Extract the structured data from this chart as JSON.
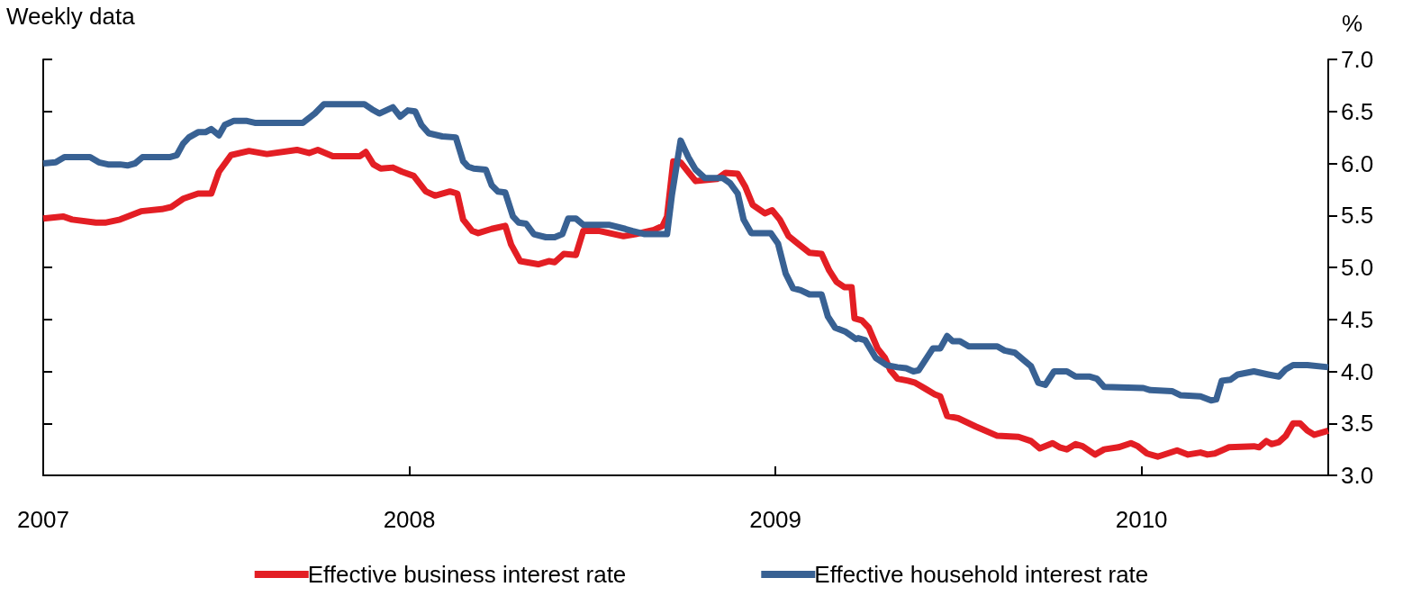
{
  "chart_data": {
    "type": "line",
    "subtitle": "Weekly data",
    "ylabel": "%",
    "xlim": [
      2007,
      2010.51
    ],
    "xticks": [
      2007,
      2008,
      2009,
      2010
    ],
    "ylim": [
      3,
      7
    ],
    "yticks": [
      {
        "value": 3,
        "label": "3.0"
      },
      {
        "value": 3.5,
        "label": "3.5"
      },
      {
        "value": 4,
        "label": "4.0"
      },
      {
        "value": 4.5,
        "label": "4.5"
      },
      {
        "value": 5,
        "label": "5.0"
      },
      {
        "value": 5.5,
        "label": "5.5"
      },
      {
        "value": 6,
        "label": "6.0"
      },
      {
        "value": 6.5,
        "label": "6.5"
      },
      {
        "value": 7,
        "label": "7.0"
      }
    ],
    "grid": false,
    "legend": "bottom",
    "line_style": "solid",
    "series": [
      {
        "name": "Effective business interest rate",
        "color": "#e31e24",
        "x": [
          2007.0,
          2007.054,
          2007.079,
          2007.144,
          2007.169,
          2007.21,
          2007.267,
          2007.324,
          2007.349,
          2007.382,
          2007.423,
          2007.459,
          2007.48,
          2007.513,
          2007.562,
          2007.611,
          2007.693,
          2007.726,
          2007.75,
          2007.791,
          2007.865,
          2007.881,
          2007.902,
          2007.922,
          2007.955,
          2007.98,
          2008.012,
          2008.045,
          2008.07,
          2008.111,
          2008.131,
          2008.147,
          2008.172,
          2008.188,
          2008.225,
          2008.262,
          2008.278,
          2008.303,
          2008.352,
          2008.381,
          2008.397,
          2008.422,
          2008.455,
          2008.475,
          2008.52,
          2008.585,
          2008.618,
          2008.668,
          2008.692,
          2008.704,
          2008.721,
          2008.741,
          2008.782,
          2008.84,
          2008.864,
          2008.897,
          2008.917,
          2008.938,
          2008.971,
          2008.991,
          2009.012,
          2009.036,
          2009.061,
          2009.093,
          2009.126,
          2009.147,
          2009.167,
          2009.188,
          2009.208,
          2009.216,
          2009.236,
          2009.255,
          2009.279,
          2009.299,
          2009.314,
          2009.333,
          2009.362,
          2009.382,
          2009.411,
          2009.435,
          2009.45,
          2009.469,
          2009.499,
          2009.547,
          2009.567,
          2009.606,
          2009.664,
          2009.698,
          2009.722,
          2009.757,
          2009.776,
          2009.796,
          2009.82,
          2009.839,
          2009.873,
          2009.898,
          2009.937,
          2009.971,
          2009.99,
          2010.015,
          2010.044,
          2010.097,
          2010.127,
          2010.161,
          2010.18,
          2010.2,
          2010.239,
          2010.307,
          2010.321,
          2010.341,
          2010.355,
          2010.375,
          2010.394,
          2010.414,
          2010.433,
          2010.453,
          2010.472,
          2010.51
        ],
        "values": [
          5.47,
          5.49,
          5.46,
          5.43,
          5.43,
          5.46,
          5.54,
          5.56,
          5.58,
          5.66,
          5.71,
          5.71,
          5.92,
          6.08,
          6.12,
          6.09,
          6.13,
          6.1,
          6.13,
          6.07,
          6.07,
          6.11,
          5.99,
          5.95,
          5.96,
          5.92,
          5.88,
          5.73,
          5.69,
          5.73,
          5.71,
          5.46,
          5.35,
          5.33,
          5.37,
          5.4,
          5.22,
          5.06,
          5.03,
          5.06,
          5.05,
          5.13,
          5.12,
          5.35,
          5.35,
          5.3,
          5.32,
          5.36,
          5.4,
          5.49,
          6.02,
          6.01,
          5.83,
          5.85,
          5.91,
          5.9,
          5.78,
          5.6,
          5.52,
          5.55,
          5.46,
          5.3,
          5.23,
          5.14,
          5.13,
          4.97,
          4.86,
          4.81,
          4.81,
          4.51,
          4.49,
          4.42,
          4.22,
          4.13,
          4.01,
          3.93,
          3.91,
          3.89,
          3.83,
          3.78,
          3.76,
          3.57,
          3.55,
          3.47,
          3.44,
          3.38,
          3.37,
          3.33,
          3.26,
          3.31,
          3.27,
          3.25,
          3.3,
          3.28,
          3.2,
          3.25,
          3.27,
          3.31,
          3.28,
          3.21,
          3.18,
          3.24,
          3.2,
          3.22,
          3.2,
          3.21,
          3.27,
          3.28,
          3.27,
          3.33,
          3.3,
          3.32,
          3.38,
          3.5,
          3.5,
          3.43,
          3.39,
          3.43
        ]
      },
      {
        "name": "Effective household interest rate",
        "color": "#386193",
        "x": [
          2007.0,
          2007.034,
          2007.058,
          2007.128,
          2007.152,
          2007.177,
          2007.21,
          2007.23,
          2007.251,
          2007.271,
          2007.345,
          2007.365,
          2007.382,
          2007.398,
          2007.423,
          2007.443,
          2007.459,
          2007.48,
          2007.496,
          2007.521,
          2007.554,
          2007.578,
          2007.709,
          2007.742,
          2007.767,
          2007.877,
          2007.898,
          2007.918,
          2007.955,
          2007.975,
          2007.996,
          2008.016,
          2008.033,
          2008.053,
          2008.09,
          2008.127,
          2008.147,
          2008.16,
          2008.176,
          2008.209,
          2008.225,
          2008.242,
          2008.262,
          2008.283,
          2008.299,
          2008.319,
          2008.34,
          2008.373,
          2008.397,
          2008.418,
          2008.434,
          2008.455,
          2008.475,
          2008.545,
          2008.59,
          2008.61,
          2008.643,
          2008.704,
          2008.717,
          2008.741,
          2008.762,
          2008.782,
          2008.807,
          2008.856,
          2008.876,
          2008.897,
          2008.913,
          2008.934,
          2008.987,
          2009.007,
          2009.028,
          2009.048,
          2009.069,
          2009.093,
          2009.126,
          2009.143,
          2009.163,
          2009.192,
          2009.22,
          2009.226,
          2009.245,
          2009.274,
          2009.304,
          2009.333,
          2009.357,
          2009.377,
          2009.391,
          2009.43,
          2009.45,
          2009.469,
          2009.484,
          2009.504,
          2009.528,
          2009.606,
          2009.626,
          2009.654,
          2009.698,
          2009.718,
          2009.737,
          2009.761,
          2009.796,
          2009.82,
          2009.859,
          2009.878,
          2009.898,
          2010.005,
          2010.024,
          2010.083,
          2010.107,
          2010.161,
          2010.19,
          2010.204,
          2010.219,
          2010.243,
          2010.263,
          2010.307,
          2010.346,
          2010.375,
          2010.394,
          2010.414,
          2010.453,
          2010.51
        ],
        "values": [
          6.0,
          6.01,
          6.06,
          6.06,
          6.01,
          5.99,
          5.99,
          5.98,
          6.0,
          6.06,
          6.06,
          6.08,
          6.19,
          6.25,
          6.3,
          6.3,
          6.33,
          6.27,
          6.37,
          6.41,
          6.41,
          6.39,
          6.39,
          6.48,
          6.57,
          6.57,
          6.52,
          6.48,
          6.54,
          6.45,
          6.51,
          6.5,
          6.37,
          6.29,
          6.26,
          6.25,
          6.02,
          5.97,
          5.95,
          5.94,
          5.79,
          5.73,
          5.72,
          5.49,
          5.43,
          5.42,
          5.32,
          5.29,
          5.29,
          5.32,
          5.47,
          5.47,
          5.41,
          5.41,
          5.37,
          5.35,
          5.32,
          5.32,
          5.69,
          6.22,
          6.06,
          5.94,
          5.86,
          5.86,
          5.81,
          5.71,
          5.46,
          5.33,
          5.33,
          5.23,
          4.94,
          4.8,
          4.78,
          4.74,
          4.74,
          4.53,
          4.42,
          4.38,
          4.31,
          4.32,
          4.3,
          4.13,
          4.06,
          4.04,
          4.03,
          4.0,
          4.01,
          4.22,
          4.22,
          4.34,
          4.29,
          4.29,
          4.24,
          4.24,
          4.2,
          4.18,
          4.05,
          3.89,
          3.87,
          4.0,
          4.0,
          3.95,
          3.95,
          3.93,
          3.85,
          3.84,
          3.82,
          3.81,
          3.77,
          3.76,
          3.72,
          3.73,
          3.91,
          3.92,
          3.97,
          4.0,
          3.97,
          3.95,
          4.02,
          4.06,
          4.06,
          4.04
        ]
      }
    ]
  }
}
